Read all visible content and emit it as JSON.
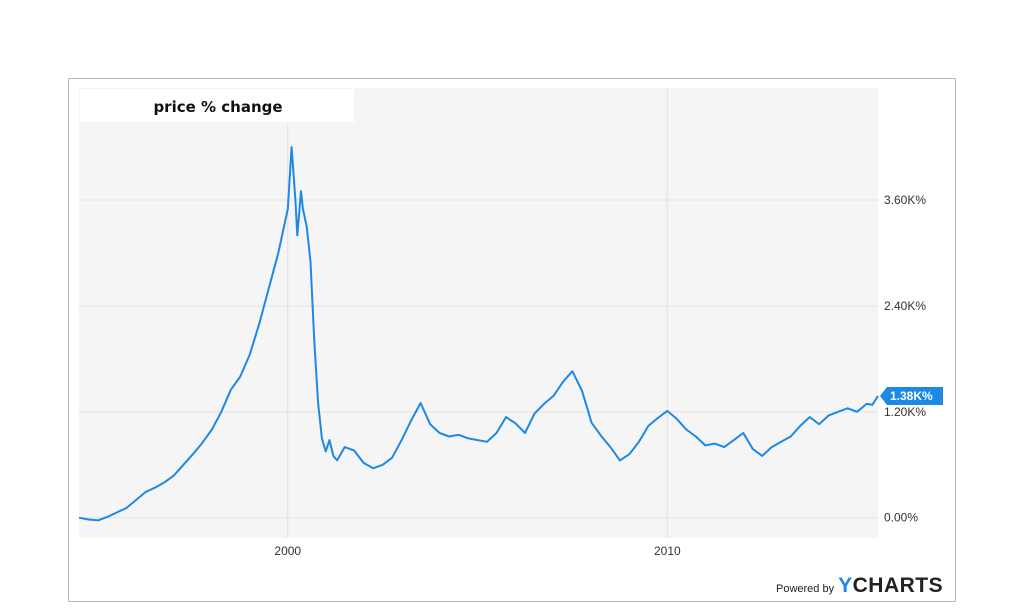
{
  "chart_data": {
    "type": "line",
    "title": "price % change",
    "ytick_labels": [
      "3.60K%",
      "2.40K%",
      "1.20K%",
      "0.00%"
    ],
    "ytick_values": [
      3600,
      2400,
      1200,
      0
    ],
    "xtick_labels": [
      "2000",
      "2010"
    ],
    "xtick_values": [
      2000,
      2010
    ],
    "xlim": [
      1994.5,
      2015.55
    ],
    "ylim": [
      -230,
      4870
    ],
    "grid": true,
    "line_color": "#1e88e5",
    "last_value_label": "1.38K%",
    "series": [
      {
        "x": [
          1994.5,
          1994.75,
          1995.0,
          1995.25,
          1995.5,
          1995.75,
          1996.0,
          1996.25,
          1996.5,
          1996.75,
          1997.0,
          1997.25,
          1997.5,
          1997.75,
          1998.0,
          1998.25,
          1998.5,
          1998.75,
          1999.0,
          1999.25,
          1999.5,
          1999.75,
          1999.9,
          2000.0,
          2000.1,
          2000.2,
          2000.25,
          2000.35,
          2000.4,
          2000.5,
          2000.6,
          2000.7,
          2000.8,
          2000.9,
          2001.0,
          2001.1,
          2001.2,
          2001.3,
          2001.5,
          2001.75,
          2002.0,
          2002.25,
          2002.5,
          2002.75,
          2003.0,
          2003.25,
          2003.5,
          2003.75,
          2004.0,
          2004.25,
          2004.5,
          2004.75,
          2005.0,
          2005.25,
          2005.5,
          2005.75,
          2006.0,
          2006.25,
          2006.5,
          2006.75,
          2007.0,
          2007.25,
          2007.5,
          2007.75,
          2007.9,
          2008.0,
          2008.25,
          2008.5,
          2008.75,
          2009.0,
          2009.25,
          2009.5,
          2009.75,
          2010.0,
          2010.25,
          2010.5,
          2010.75,
          2011.0,
          2011.25,
          2011.5,
          2011.75,
          2012.0,
          2012.25,
          2012.5,
          2012.75,
          2013.0,
          2013.25,
          2013.5,
          2013.75,
          2014.0,
          2014.25,
          2014.5,
          2014.75,
          2015.0,
          2015.25,
          2015.4,
          2015.55
        ],
        "y": [
          0,
          -20,
          -30,
          10,
          60,
          110,
          200,
          290,
          340,
          400,
          480,
          600,
          720,
          850,
          1000,
          1200,
          1450,
          1600,
          1850,
          2200,
          2600,
          3000,
          3300,
          3500,
          4200,
          3600,
          3200,
          3700,
          3500,
          3300,
          2900,
          2000,
          1300,
          900,
          750,
          880,
          700,
          650,
          800,
          760,
          620,
          560,
          600,
          680,
          880,
          1100,
          1300,
          1060,
          960,
          920,
          940,
          900,
          880,
          860,
          960,
          1140,
          1070,
          960,
          1180,
          1290,
          1380,
          1540,
          1660,
          1440,
          1230,
          1080,
          930,
          800,
          650,
          720,
          860,
          1040,
          1130,
          1210,
          1120,
          1000,
          920,
          820,
          840,
          800,
          880,
          960,
          780,
          700,
          800,
          860,
          920,
          1040,
          1140,
          1060,
          1160,
          1200,
          1240,
          1200,
          1290,
          1280,
          1380
        ]
      }
    ]
  },
  "footer": {
    "powered_by": "Powered by",
    "brand_y": "Y",
    "brand_rest": "CHARTS"
  }
}
